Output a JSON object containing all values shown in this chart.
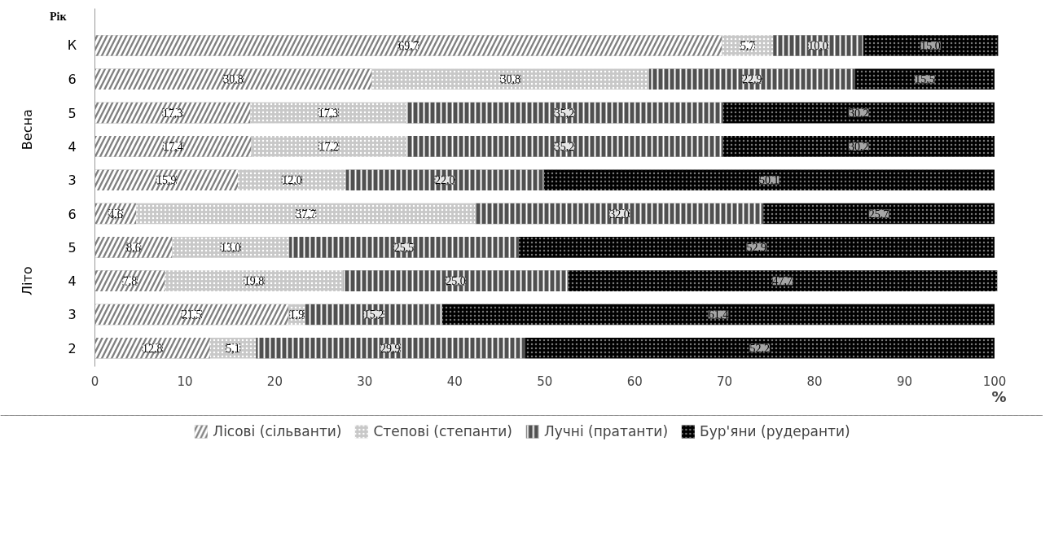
{
  "chart_data": {
    "type": "bar",
    "orientation": "horizontal",
    "stacked": true,
    "ylabel": "Рік",
    "xlabel": "%",
    "categories": [
      "К",
      "6",
      "5",
      "4",
      "3",
      "6",
      "5",
      "4",
      "3",
      "2"
    ],
    "annotations": [
      "Весна",
      "Літо"
    ],
    "xlim": [
      0,
      100.5
    ],
    "xticks": [
      0,
      10,
      20,
      30,
      40,
      50,
      60,
      70,
      80,
      90,
      100
    ],
    "grid": false,
    "legend": "bottom",
    "series": [
      {
        "name": "Лісові (сільванти)",
        "color": "#808080",
        "values": [
          69.7,
          30.8,
          17.3,
          17.4,
          15.9,
          4.6,
          8.6,
          7.8,
          21.5,
          12.8
        ],
        "value_labels": [
          "69,7",
          "30,8",
          "17,3",
          "17,4",
          "15,9",
          "4,6",
          "8,6",
          "7,8",
          "21,5",
          "12,8"
        ]
      },
      {
        "name": "Степові (степанти)",
        "color": "#c8c8c8",
        "values": [
          5.7,
          30.8,
          17.3,
          17.2,
          12.0,
          37.7,
          13.0,
          19.8,
          1.9,
          5.1
        ],
        "value_labels": [
          "5,7",
          "30,8",
          "17,3",
          "17,2",
          "12,0",
          "37,7",
          "13,0",
          "19,8",
          "1,9",
          "5,1"
        ]
      },
      {
        "name": "Лучні (пратанти)",
        "color": "#505050",
        "values": [
          10.0,
          22.9,
          35.2,
          35.2,
          22.0,
          32.0,
          25.5,
          25.0,
          15.2,
          29.9
        ],
        "value_labels": [
          "10,0",
          "22,9",
          "35,2",
          "35,2",
          "22,0",
          "32,0",
          "25,5",
          "25,0",
          "15,2",
          "29,9"
        ]
      },
      {
        "name": "Бур'яни (рудеранти)",
        "color": "#000000",
        "values": [
          15.0,
          15.5,
          30.2,
          30.2,
          50.1,
          25.7,
          52.9,
          47.7,
          61.4,
          52.2
        ],
        "value_labels": [
          "15,0",
          "15,5",
          "30,2",
          "30,2",
          "50,1",
          "25,7",
          "52,9",
          "47,7",
          "61,4",
          "52,2"
        ]
      }
    ]
  }
}
